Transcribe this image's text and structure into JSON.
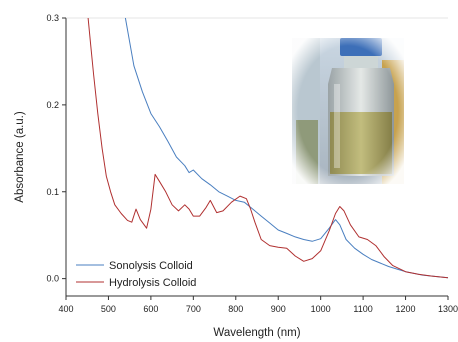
{
  "chart_data": {
    "type": "line",
    "xlabel": "Wavelength (nm)",
    "ylabel": "Absorbance (a.u.)",
    "xlim": [
      400,
      1300
    ],
    "ylim": [
      -0.02,
      0.3
    ],
    "x_ticks": [
      400,
      500,
      600,
      700,
      800,
      900,
      1000,
      1100,
      1200,
      1300
    ],
    "y_ticks": [
      0.0,
      0.1,
      0.2,
      0.3
    ],
    "y_tick_labels": [
      "0.0",
      "0.1",
      "0.2",
      "0.3"
    ],
    "grid": false,
    "legend_position": "bottom-left",
    "colors": {
      "sonolysis": "#4a7fc0",
      "hydrolysis": "#b03030",
      "axis": "#333333"
    },
    "inset_image": "photo of a glass bottle containing a yellowish colloid with a blue cap",
    "series": [
      {
        "name": "Sonolysis Colloid",
        "x": [
          540,
          560,
          580,
          600,
          620,
          640,
          660,
          680,
          690,
          700,
          720,
          740,
          760,
          780,
          800,
          820,
          840,
          860,
          880,
          900,
          920,
          940,
          960,
          980,
          1000,
          1020,
          1035,
          1045,
          1060,
          1080,
          1100,
          1120,
          1140,
          1160,
          1180,
          1200,
          1220,
          1240,
          1260,
          1280,
          1300
        ],
        "y": [
          0.3,
          0.245,
          0.215,
          0.19,
          0.175,
          0.158,
          0.14,
          0.13,
          0.122,
          0.125,
          0.115,
          0.108,
          0.1,
          0.095,
          0.09,
          0.088,
          0.08,
          0.072,
          0.064,
          0.056,
          0.052,
          0.048,
          0.045,
          0.043,
          0.046,
          0.058,
          0.068,
          0.062,
          0.045,
          0.035,
          0.028,
          0.022,
          0.018,
          0.014,
          0.011,
          0.008,
          0.006,
          0.004,
          0.003,
          0.002,
          0.001
        ]
      },
      {
        "name": "Hydrolysis Colloid",
        "x": [
          452,
          458,
          465,
          475,
          485,
          495,
          505,
          515,
          530,
          545,
          555,
          565,
          575,
          590,
          600,
          610,
          620,
          635,
          650,
          665,
          680,
          690,
          700,
          715,
          730,
          740,
          755,
          770,
          790,
          810,
          825,
          835,
          845,
          860,
          880,
          900,
          920,
          940,
          960,
          980,
          1000,
          1020,
          1035,
          1045,
          1055,
          1070,
          1090,
          1110,
          1130,
          1150,
          1170,
          1200,
          1230,
          1260,
          1300
        ],
        "y": [
          0.3,
          0.27,
          0.235,
          0.19,
          0.15,
          0.118,
          0.1,
          0.085,
          0.075,
          0.067,
          0.065,
          0.08,
          0.068,
          0.058,
          0.08,
          0.12,
          0.112,
          0.1,
          0.085,
          0.078,
          0.085,
          0.08,
          0.072,
          0.072,
          0.082,
          0.09,
          0.076,
          0.078,
          0.088,
          0.095,
          0.092,
          0.08,
          0.065,
          0.045,
          0.038,
          0.036,
          0.035,
          0.026,
          0.02,
          0.023,
          0.032,
          0.055,
          0.075,
          0.083,
          0.078,
          0.062,
          0.048,
          0.045,
          0.038,
          0.025,
          0.015,
          0.008,
          0.005,
          0.003,
          0.001
        ]
      }
    ]
  }
}
